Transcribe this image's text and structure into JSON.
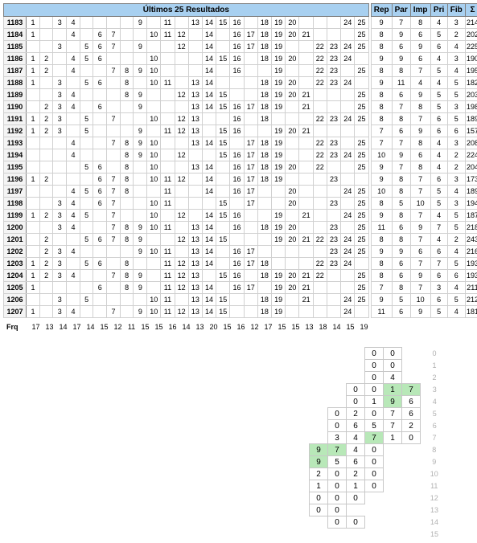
{
  "colors": {
    "header_bg": "#a8d0f0",
    "border": "#808080",
    "cell_border": "#d0d0d0",
    "highlight": "#b8e8b8",
    "idx_text": "#b0b0b0"
  },
  "main": {
    "title": "Últimos 25 Resultados",
    "id_start": 1183,
    "num_cols": 25,
    "rows": [
      {
        "id": 1183,
        "n": [
          1,
          3,
          4,
          9,
          11,
          13,
          14,
          15,
          16,
          18,
          19,
          20,
          24,
          25
        ]
      },
      {
        "id": 1184,
        "n": [
          1,
          4,
          6,
          7,
          10,
          11,
          12,
          14,
          16,
          17,
          18,
          19,
          20,
          21,
          25
        ]
      },
      {
        "id": 1185,
        "n": [
          3,
          5,
          6,
          7,
          9,
          12,
          14,
          16,
          17,
          18,
          19,
          22,
          23,
          24,
          25
        ]
      },
      {
        "id": 1186,
        "n": [
          1,
          2,
          4,
          5,
          6,
          10,
          14,
          15,
          16,
          18,
          19,
          20,
          22,
          23,
          24
        ]
      },
      {
        "id": 1187,
        "n": [
          1,
          2,
          4,
          7,
          8,
          9,
          10,
          14,
          16,
          19,
          22,
          23,
          25
        ]
      },
      {
        "id": 1188,
        "n": [
          1,
          3,
          5,
          6,
          8,
          10,
          11,
          13,
          14,
          18,
          19,
          20,
          22,
          23,
          24
        ]
      },
      {
        "id": 1189,
        "n": [
          3,
          4,
          8,
          9,
          12,
          13,
          14,
          15,
          18,
          19,
          20,
          21,
          25
        ]
      },
      {
        "id": 1190,
        "n": [
          2,
          3,
          4,
          6,
          9,
          13,
          14,
          15,
          16,
          17,
          18,
          19,
          21,
          25
        ]
      },
      {
        "id": 1191,
        "n": [
          1,
          2,
          3,
          5,
          7,
          10,
          12,
          13,
          16,
          18,
          22,
          23,
          24,
          25
        ]
      },
      {
        "id": 1192,
        "n": [
          1,
          2,
          3,
          5,
          9,
          11,
          12,
          13,
          15,
          16,
          19,
          20,
          21
        ]
      },
      {
        "id": 1193,
        "n": [
          4,
          7,
          8,
          9,
          10,
          13,
          14,
          15,
          17,
          18,
          19,
          22,
          23,
          25
        ]
      },
      {
        "id": 1194,
        "n": [
          4,
          8,
          9,
          10,
          12,
          15,
          16,
          17,
          18,
          19,
          22,
          23,
          24,
          25
        ]
      },
      {
        "id": 1195,
        "n": [
          5,
          6,
          8,
          10,
          13,
          14,
          16,
          17,
          18,
          19,
          20,
          22,
          25
        ]
      },
      {
        "id": 1196,
        "n": [
          1,
          2,
          6,
          7,
          8,
          10,
          11,
          12,
          14,
          16,
          17,
          18,
          19,
          23
        ]
      },
      {
        "id": 1197,
        "n": [
          4,
          5,
          6,
          7,
          8,
          11,
          14,
          16,
          17,
          20,
          24,
          25
        ]
      },
      {
        "id": 1198,
        "n": [
          3,
          4,
          6,
          7,
          10,
          11,
          15,
          17,
          20,
          23,
          25
        ]
      },
      {
        "id": 1199,
        "n": [
          1,
          2,
          3,
          4,
          5,
          7,
          10,
          12,
          14,
          15,
          16,
          19,
          21,
          24,
          25
        ]
      },
      {
        "id": 1200,
        "n": [
          3,
          4,
          7,
          8,
          9,
          10,
          11,
          13,
          14,
          16,
          18,
          19,
          20,
          23,
          25
        ]
      },
      {
        "id": 1201,
        "n": [
          2,
          5,
          6,
          7,
          8,
          9,
          12,
          13,
          14,
          15,
          19,
          20,
          21,
          22,
          23,
          24,
          25
        ]
      },
      {
        "id": 1202,
        "n": [
          2,
          3,
          4,
          9,
          10,
          11,
          13,
          14,
          16,
          17,
          23,
          24,
          25
        ]
      },
      {
        "id": 1203,
        "n": [
          1,
          2,
          3,
          5,
          6,
          8,
          11,
          12,
          13,
          14,
          16,
          17,
          18,
          22,
          23,
          24
        ]
      },
      {
        "id": 1204,
        "n": [
          1,
          2,
          3,
          4,
          7,
          8,
          9,
          11,
          12,
          13,
          15,
          16,
          18,
          19,
          20,
          21,
          22,
          25
        ]
      },
      {
        "id": 1205,
        "n": [
          1,
          6,
          8,
          9,
          11,
          12,
          13,
          14,
          16,
          17,
          19,
          20,
          21,
          25
        ]
      },
      {
        "id": 1206,
        "n": [
          3,
          5,
          10,
          11,
          13,
          14,
          15,
          18,
          19,
          21,
          24,
          25
        ]
      },
      {
        "id": 1207,
        "n": [
          1,
          3,
          4,
          7,
          9,
          10,
          11,
          12,
          13,
          14,
          15,
          18,
          19,
          24
        ]
      }
    ]
  },
  "stats": {
    "headers": [
      "Rep",
      "Par",
      "Imp",
      "Pri",
      "Fib",
      "Σ"
    ],
    "rows": [
      [
        9,
        7,
        8,
        4,
        3,
        214
      ],
      [
        8,
        9,
        6,
        5,
        2,
        202
      ],
      [
        8,
        6,
        9,
        6,
        4,
        225
      ],
      [
        9,
        9,
        6,
        4,
        3,
        190
      ],
      [
        8,
        8,
        7,
        5,
        4,
        195
      ],
      [
        9,
        11,
        4,
        4,
        5,
        182
      ],
      [
        8,
        6,
        9,
        5,
        5,
        203
      ],
      [
        8,
        7,
        8,
        5,
        3,
        198
      ],
      [
        8,
        8,
        7,
        6,
        5,
        189
      ],
      [
        7,
        6,
        9,
        6,
        6,
        157
      ],
      [
        7,
        7,
        8,
        4,
        3,
        208
      ],
      [
        10,
        9,
        6,
        4,
        2,
        224
      ],
      [
        9,
        7,
        8,
        4,
        2,
        204
      ],
      [
        9,
        8,
        7,
        6,
        3,
        173
      ],
      [
        10,
        8,
        7,
        5,
        4,
        189
      ],
      [
        8,
        5,
        10,
        5,
        3,
        194
      ],
      [
        9,
        8,
        7,
        4,
        5,
        187
      ],
      [
        11,
        6,
        9,
        7,
        5,
        218
      ],
      [
        8,
        8,
        7,
        4,
        2,
        243
      ],
      [
        9,
        9,
        6,
        6,
        4,
        216
      ],
      [
        8,
        6,
        7,
        7,
        5,
        193
      ],
      [
        8,
        6,
        9,
        6,
        6,
        193
      ],
      [
        7,
        8,
        7,
        3,
        4,
        211
      ],
      [
        9,
        5,
        10,
        6,
        5,
        212
      ],
      [
        11,
        6,
        9,
        5,
        4,
        181
      ]
    ]
  },
  "freq": {
    "label": "Frq",
    "values": [
      17,
      13,
      14,
      17,
      14,
      15,
      12,
      11,
      15,
      15,
      16,
      14,
      13,
      20,
      15,
      16,
      12,
      17,
      15,
      15,
      13,
      18,
      14,
      15,
      19
    ]
  },
  "bottom": {
    "cells": [
      [
        null,
        null,
        null,
        0,
        0
      ],
      [
        null,
        null,
        null,
        0,
        0
      ],
      [
        null,
        null,
        null,
        0,
        4
      ],
      [
        null,
        null,
        0,
        0,
        {
          "v": 1,
          "hl": 1
        },
        {
          "v": 7,
          "hl": 1
        }
      ],
      [
        null,
        null,
        0,
        1,
        {
          "v": 9,
          "hl": 1
        },
        6
      ],
      [
        null,
        0,
        2,
        0,
        7,
        6
      ],
      [
        null,
        0,
        6,
        5,
        7,
        2
      ],
      [
        null,
        3,
        4,
        {
          "v": 7,
          "hl": 1
        },
        1,
        0
      ],
      [
        {
          "v": 9,
          "hl": 1
        },
        {
          "v": 7,
          "hl": 1
        },
        4,
        0
      ],
      [
        {
          "v": 9,
          "hl": 1
        },
        5,
        6,
        0
      ],
      [
        2,
        0,
        2,
        0
      ],
      [
        1,
        0,
        1,
        0
      ],
      [
        0,
        0,
        0
      ],
      [
        0,
        0
      ],
      [
        null,
        0,
        0
      ],
      [
        null
      ]
    ],
    "index_start": 0
  }
}
